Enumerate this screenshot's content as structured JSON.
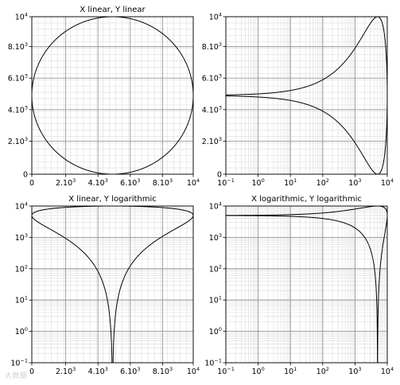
{
  "chart_data": [
    {
      "type": "line",
      "title": "X linear, Y linear",
      "xscale": "linear",
      "yscale": "linear",
      "xlim": [
        0,
        10000
      ],
      "ylim": [
        0,
        10000
      ],
      "xticks": [
        0,
        2100,
        4100,
        6100,
        8100,
        10000
      ],
      "xticklabels": [
        {
          "base": "0",
          "exp": ""
        },
        {
          "base": "2.10",
          "exp": "3"
        },
        {
          "base": "4.10",
          "exp": "3"
        },
        {
          "base": "6.10",
          "exp": "3"
        },
        {
          "base": "8.10",
          "exp": "3"
        },
        {
          "base": "10",
          "exp": "4"
        }
      ],
      "yticks": [
        0,
        2100,
        4100,
        6100,
        8100,
        10000
      ],
      "yticklabels": [
        {
          "base": "0",
          "exp": ""
        },
        {
          "base": "2.10",
          "exp": "3"
        },
        {
          "base": "4.10",
          "exp": "3"
        },
        {
          "base": "6.10",
          "exp": "3"
        },
        {
          "base": "8.10",
          "exp": "3"
        },
        {
          "base": "10",
          "exp": "4"
        }
      ],
      "grid": true,
      "series": [
        {
          "kind": "circle",
          "center": [
            5000,
            5000
          ],
          "radius": 5000,
          "color": "#000000"
        }
      ]
    },
    {
      "type": "line",
      "title": "",
      "xscale": "log",
      "yscale": "linear",
      "xlim": [
        0.1,
        10000
      ],
      "ylim": [
        0,
        10000
      ],
      "xticks": [
        0.1,
        1,
        10,
        100,
        1000,
        10000
      ],
      "xticklabels": [
        {
          "base": "10",
          "exp": "−1"
        },
        {
          "base": "10",
          "exp": "0"
        },
        {
          "base": "10",
          "exp": "1"
        },
        {
          "base": "10",
          "exp": "2"
        },
        {
          "base": "10",
          "exp": "3"
        },
        {
          "base": "10",
          "exp": "4"
        }
      ],
      "yticks": [
        0,
        2100,
        4100,
        6100,
        8100,
        10000
      ],
      "yticklabels": [
        {
          "base": "0",
          "exp": ""
        },
        {
          "base": "2.10",
          "exp": "3"
        },
        {
          "base": "4.10",
          "exp": "3"
        },
        {
          "base": "6.10",
          "exp": "3"
        },
        {
          "base": "8.10",
          "exp": "3"
        },
        {
          "base": "10",
          "exp": "4"
        }
      ],
      "grid": true,
      "series": [
        {
          "kind": "circle",
          "center": [
            5000,
            5000
          ],
          "radius": 5000,
          "color": "#000000"
        }
      ]
    },
    {
      "type": "line",
      "title": "X linear, Y logarithmic",
      "xscale": "linear",
      "yscale": "log",
      "xlim": [
        0,
        10000
      ],
      "ylim": [
        0.1,
        10000
      ],
      "xticks": [
        0,
        2100,
        4100,
        6100,
        8100,
        10000
      ],
      "xticklabels": [
        {
          "base": "0",
          "exp": ""
        },
        {
          "base": "2.10",
          "exp": "3"
        },
        {
          "base": "4.10",
          "exp": "3"
        },
        {
          "base": "6.10",
          "exp": "3"
        },
        {
          "base": "8.10",
          "exp": "3"
        },
        {
          "base": "10",
          "exp": "4"
        }
      ],
      "yticks": [
        0.1,
        1,
        10,
        100,
        1000,
        10000
      ],
      "yticklabels": [
        {
          "base": "10",
          "exp": "−1"
        },
        {
          "base": "10",
          "exp": "0"
        },
        {
          "base": "10",
          "exp": "1"
        },
        {
          "base": "10",
          "exp": "2"
        },
        {
          "base": "10",
          "exp": "3"
        },
        {
          "base": "10",
          "exp": "4"
        }
      ],
      "grid": true,
      "series": [
        {
          "kind": "circle",
          "center": [
            5000,
            5000
          ],
          "radius": 5000,
          "color": "#000000"
        }
      ]
    },
    {
      "type": "line",
      "title": "X logarithmic, Y logarithmic",
      "xscale": "log",
      "yscale": "log",
      "xlim": [
        0.1,
        10000
      ],
      "ylim": [
        0.1,
        10000
      ],
      "xticks": [
        0.1,
        1,
        10,
        100,
        1000,
        10000
      ],
      "xticklabels": [
        {
          "base": "10",
          "exp": "−1"
        },
        {
          "base": "10",
          "exp": "0"
        },
        {
          "base": "10",
          "exp": "1"
        },
        {
          "base": "10",
          "exp": "2"
        },
        {
          "base": "10",
          "exp": "3"
        },
        {
          "base": "10",
          "exp": "4"
        }
      ],
      "yticks": [
        0.1,
        1,
        10,
        100,
        1000,
        10000
      ],
      "yticklabels": [
        {
          "base": "10",
          "exp": "−1"
        },
        {
          "base": "10",
          "exp": "0"
        },
        {
          "base": "10",
          "exp": "1"
        },
        {
          "base": "10",
          "exp": "2"
        },
        {
          "base": "10",
          "exp": "3"
        },
        {
          "base": "10",
          "exp": "4"
        }
      ],
      "grid": true,
      "series": [
        {
          "kind": "circle",
          "center": [
            5000,
            5000
          ],
          "radius": 5000,
          "color": "#000000"
        }
      ]
    }
  ],
  "colors": {
    "line": "#000000",
    "grid_major": "#9a9a9a",
    "grid_minor": "#dcdcdc",
    "axes": "#000000",
    "background": "#ffffff"
  },
  "watermark": {
    "text": "大数据"
  }
}
